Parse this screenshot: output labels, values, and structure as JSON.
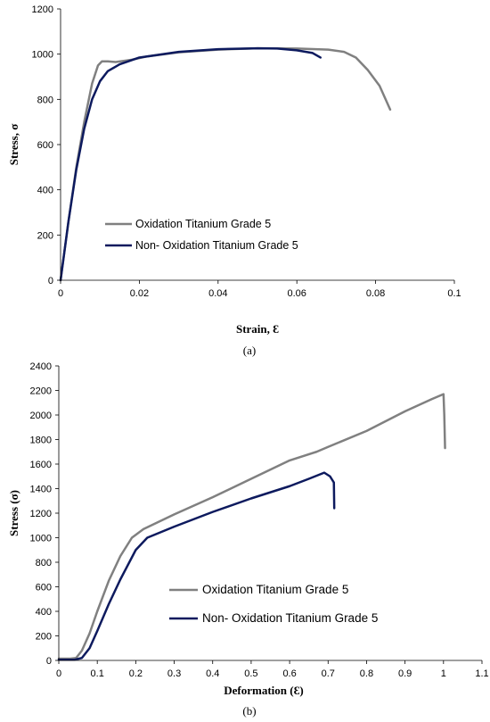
{
  "chart_data": [
    {
      "type": "line",
      "panel_label": "(a)",
      "xlabel": "Strain, Ɛ",
      "ylabel": "Stress, σ",
      "xlim": [
        0,
        0.1
      ],
      "ylim": [
        0,
        1200
      ],
      "x_ticks": [
        "0",
        "0.02",
        "0.04",
        "0.06",
        "0.08",
        "0.1"
      ],
      "y_ticks": [
        "0",
        "200",
        "400",
        "600",
        "800",
        "1000",
        "1200"
      ],
      "legend_placement": "lower-left",
      "series": [
        {
          "name": "Oxidation Titanium Grade 5",
          "color": "#808080",
          "points": [
            [
              0,
              0
            ],
            [
              0.002,
              260
            ],
            [
              0.004,
              500
            ],
            [
              0.006,
              700
            ],
            [
              0.008,
              870
            ],
            [
              0.0095,
              950
            ],
            [
              0.0105,
              968
            ],
            [
              0.012,
              968
            ],
            [
              0.014,
              965
            ],
            [
              0.018,
              975
            ],
            [
              0.022,
              990
            ],
            [
              0.03,
              1008
            ],
            [
              0.04,
              1020
            ],
            [
              0.05,
              1026
            ],
            [
              0.06,
              1025
            ],
            [
              0.068,
              1020
            ],
            [
              0.072,
              1010
            ],
            [
              0.075,
              985
            ],
            [
              0.078,
              930
            ],
            [
              0.081,
              860
            ],
            [
              0.0837,
              755
            ]
          ]
        },
        {
          "name": "Non- Oxidation Titanium Grade 5",
          "color": "#0d1a5e",
          "points": [
            [
              0,
              0
            ],
            [
              0.002,
              260
            ],
            [
              0.004,
              490
            ],
            [
              0.006,
              670
            ],
            [
              0.008,
              800
            ],
            [
              0.01,
              880
            ],
            [
              0.012,
              925
            ],
            [
              0.015,
              955
            ],
            [
              0.02,
              985
            ],
            [
              0.03,
              1010
            ],
            [
              0.04,
              1022
            ],
            [
              0.05,
              1026
            ],
            [
              0.055,
              1025
            ],
            [
              0.06,
              1017
            ],
            [
              0.064,
              1005
            ],
            [
              0.066,
              985
            ]
          ]
        }
      ]
    },
    {
      "type": "line",
      "panel_label": "(b)",
      "xlabel": "Deformation (Ɛ)",
      "ylabel": "Stress (σ)",
      "xlim": [
        0,
        1.1
      ],
      "ylim": [
        0,
        2400
      ],
      "x_ticks": [
        "0",
        "0.1",
        "0.2",
        "0.3",
        "0.4",
        "0.5",
        "0.6",
        "0.7",
        "0.8",
        "0.9",
        "1",
        "1.1"
      ],
      "y_ticks": [
        "0",
        "200",
        "400",
        "600",
        "800",
        "1000",
        "1200",
        "1400",
        "1600",
        "1800",
        "2000",
        "2200",
        "2400"
      ],
      "legend_placement": "lower-center",
      "series": [
        {
          "name": "Oxidation Titanium Grade 5",
          "color": "#808080",
          "points": [
            [
              0,
              15
            ],
            [
              0.03,
              15
            ],
            [
              0.045,
              20
            ],
            [
              0.06,
              80
            ],
            [
              0.08,
              220
            ],
            [
              0.1,
              400
            ],
            [
              0.13,
              650
            ],
            [
              0.16,
              850
            ],
            [
              0.19,
              1000
            ],
            [
              0.22,
              1070
            ],
            [
              0.3,
              1190
            ],
            [
              0.4,
              1330
            ],
            [
              0.5,
              1480
            ],
            [
              0.6,
              1630
            ],
            [
              0.67,
              1700
            ],
            [
              0.7,
              1740
            ],
            [
              0.8,
              1870
            ],
            [
              0.9,
              2030
            ],
            [
              0.97,
              2130
            ],
            [
              1.0,
              2170
            ],
            [
              1.002,
              2000
            ],
            [
              1.004,
              1730
            ]
          ]
        },
        {
          "name": "Non- Oxidation Titanium Grade 5",
          "color": "#0d1a5e",
          "points": [
            [
              0,
              5
            ],
            [
              0.04,
              5
            ],
            [
              0.06,
              20
            ],
            [
              0.08,
              100
            ],
            [
              0.1,
              240
            ],
            [
              0.13,
              460
            ],
            [
              0.16,
              660
            ],
            [
              0.2,
              900
            ],
            [
              0.23,
              1000
            ],
            [
              0.3,
              1090
            ],
            [
              0.4,
              1210
            ],
            [
              0.5,
              1320
            ],
            [
              0.6,
              1420
            ],
            [
              0.65,
              1480
            ],
            [
              0.69,
              1530
            ],
            [
              0.705,
              1500
            ],
            [
              0.715,
              1450
            ],
            [
              0.716,
              1240
            ]
          ]
        }
      ]
    }
  ]
}
